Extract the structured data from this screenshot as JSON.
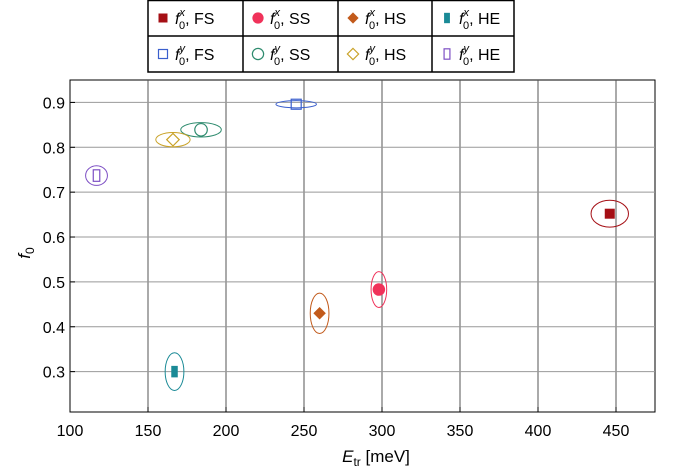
{
  "chart_data": {
    "type": "scatter",
    "xlabel_main": "E",
    "xlabel_sub": "tr",
    "xlabel_unit": " [meV]",
    "ylabel_main": "f",
    "ylabel_sub": "0",
    "xlim": [
      100,
      475
    ],
    "ylim": [
      0.21,
      0.95
    ],
    "xticks": [
      100,
      150,
      200,
      250,
      300,
      350,
      400,
      450
    ],
    "yticks": [
      0.3,
      0.4,
      0.5,
      0.6,
      0.7,
      0.8,
      0.9
    ],
    "ytick_labels": [
      "0.3",
      "0.4",
      "0.5",
      "0.6",
      "0.7",
      "0.8",
      "0.9"
    ],
    "grid": true,
    "legend_position": "top",
    "series": [
      {
        "name_main": "f",
        "name_sub": "0",
        "name_sup": "x",
        "name_suffix": ", FS",
        "marker": "square-filled",
        "color": "#a50f15",
        "x": 446,
        "y": 0.652,
        "contour_rx": 12,
        "contour_ry": 0.03
      },
      {
        "name_main": "f",
        "name_sub": "0",
        "name_sup": "x",
        "name_suffix": ", SS",
        "marker": "circle-filled",
        "color": "#f0325a",
        "x": 298,
        "y": 0.483,
        "contour_rx": 5,
        "contour_ry": 0.04
      },
      {
        "name_main": "f",
        "name_sub": "0",
        "name_sup": "x",
        "name_suffix": ", HS",
        "marker": "diamond-filled",
        "color": "#c25a1b",
        "x": 260,
        "y": 0.43,
        "contour_rx": 6,
        "contour_ry": 0.045
      },
      {
        "name_main": "f",
        "name_sub": "0",
        "name_sup": "x",
        "name_suffix": ", HE",
        "marker": "rect-filled",
        "color": "#1a8a96",
        "x": 167,
        "y": 0.3,
        "contour_rx": 6,
        "contour_ry": 0.042
      },
      {
        "name_main": "f",
        "name_sub": "0",
        "name_sup": "y",
        "name_suffix": ", FS",
        "marker": "square-open",
        "color": "#3a5fcd",
        "x": 245,
        "y": 0.896,
        "contour_rx": 13,
        "contour_ry": 0.008
      },
      {
        "name_main": "f",
        "name_sub": "0",
        "name_sup": "y",
        "name_suffix": ", SS",
        "marker": "circle-open",
        "color": "#2e8b6e",
        "x": 184,
        "y": 0.839,
        "contour_rx": 13,
        "contour_ry": 0.016
      },
      {
        "name_main": "f",
        "name_sub": "0",
        "name_sup": "y",
        "name_suffix": ", HS",
        "marker": "diamond-open",
        "color": "#c9a227",
        "x": 166,
        "y": 0.817,
        "contour_rx": 11,
        "contour_ry": 0.016
      },
      {
        "name_main": "f",
        "name_sub": "0",
        "name_sup": "y",
        "name_suffix": ", HE",
        "marker": "rect-open",
        "color": "#7d4fc4",
        "x": 117,
        "y": 0.737,
        "contour_rx": 7,
        "contour_ry": 0.022
      }
    ]
  }
}
